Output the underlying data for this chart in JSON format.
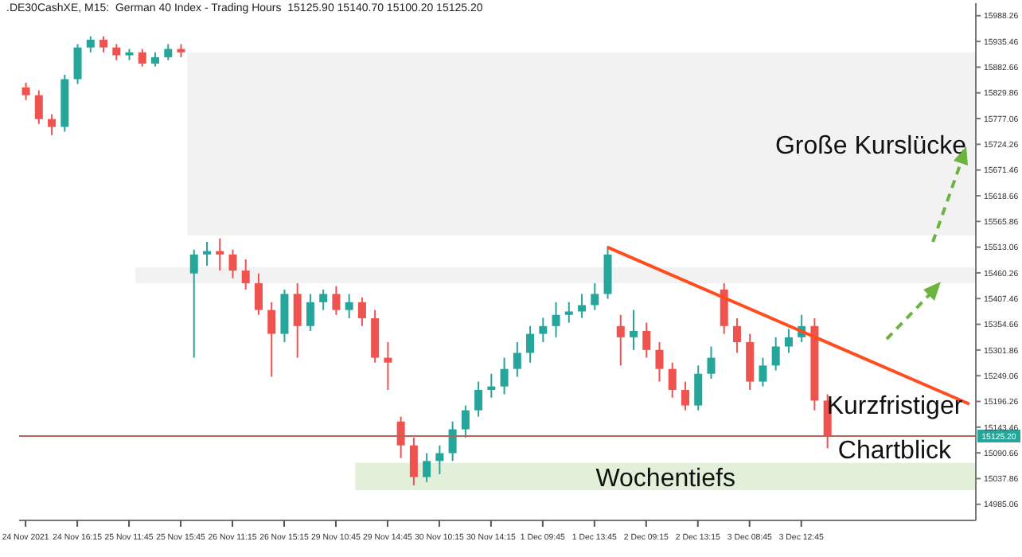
{
  "chart_data": {
    "type": "candlestick",
    "title": ".DE30CashXE, M15:  German 40 Index - Trading Hours  15125.90 15140.70 15100.20 15125.20",
    "categories": [
      "24 Nov 2021",
      null,
      null,
      null,
      "24 Nov 16:15",
      null,
      null,
      null,
      "25 Nov 11:45",
      null,
      null,
      null,
      "25 Nov 15:45",
      null,
      null,
      null,
      "26 Nov 11:15",
      null,
      null,
      null,
      "26 Nov 15:15",
      null,
      null,
      null,
      "29 Nov 10:45",
      null,
      null,
      null,
      "29 Nov 14:45",
      null,
      null,
      null,
      "30 Nov 10:15",
      null,
      null,
      null,
      "30 Nov 14:15",
      null,
      null,
      null,
      "1 Dec 09:45",
      null,
      null,
      null,
      "1 Dec 13:45",
      null,
      null,
      null,
      "2 Dec 09:15",
      null,
      null,
      null,
      "2 Dec 13:15",
      null,
      null,
      null,
      "3 Dec 08:45",
      null,
      null,
      null,
      "3 Dec 12:45",
      null,
      null,
      null,
      null,
      null,
      null,
      null,
      null,
      null,
      null,
      null,
      null,
      null
    ],
    "ohlc": [
      [
        15841,
        15851,
        15815,
        15825
      ],
      [
        15825,
        15835,
        15766,
        15776
      ],
      [
        15776,
        15786,
        15743,
        15760
      ],
      [
        15760,
        15867,
        15750,
        15858
      ],
      [
        15858,
        15930,
        15848,
        15923
      ],
      [
        15923,
        15946,
        15913,
        15939
      ],
      [
        15939,
        15946,
        15913,
        15923
      ],
      [
        15923,
        15930,
        15897,
        15907
      ],
      [
        15907,
        15920,
        15897,
        15913
      ],
      [
        15913,
        15920,
        15884,
        15890
      ],
      [
        15890,
        15913,
        15884,
        15903
      ],
      [
        15903,
        15930,
        15897,
        15920
      ],
      [
        15920,
        15930,
        15903,
        15913
      ],
      [
        15459,
        15508,
        15286,
        15498
      ],
      [
        15498,
        15524,
        15475,
        15505
      ],
      [
        15505,
        15531,
        15465,
        15498
      ],
      [
        15498,
        15508,
        15449,
        15465
      ],
      [
        15465,
        15488,
        15426,
        15439
      ],
      [
        15439,
        15459,
        15374,
        15384
      ],
      [
        15384,
        15400,
        15247,
        15335
      ],
      [
        15335,
        15426,
        15318,
        15417
      ],
      [
        15417,
        15439,
        15286,
        15351
      ],
      [
        15351,
        15417,
        15341,
        15400
      ],
      [
        15400,
        15426,
        15384,
        15417
      ],
      [
        15417,
        15433,
        15374,
        15384
      ],
      [
        15384,
        15417,
        15367,
        15400
      ],
      [
        15400,
        15410,
        15351,
        15367
      ],
      [
        15367,
        15384,
        15276,
        15286
      ],
      [
        15286,
        15318,
        15220,
        15276
      ],
      [
        15155,
        15165,
        15080,
        15106
      ],
      [
        15106,
        15122,
        15024,
        15041
      ],
      [
        15041,
        15090,
        15031,
        15074
      ],
      [
        15074,
        15106,
        15047,
        15090
      ],
      [
        15090,
        15155,
        15074,
        15139
      ],
      [
        15139,
        15188,
        15122,
        15178
      ],
      [
        15178,
        15237,
        15165,
        15220
      ],
      [
        15220,
        15253,
        15204,
        15227
      ],
      [
        15227,
        15286,
        15211,
        15263
      ],
      [
        15263,
        15318,
        15247,
        15296
      ],
      [
        15296,
        15351,
        15276,
        15335
      ],
      [
        15335,
        15368,
        15318,
        15351
      ],
      [
        15351,
        15400,
        15328,
        15374
      ],
      [
        15374,
        15400,
        15358,
        15381
      ],
      [
        15381,
        15417,
        15368,
        15394
      ],
      [
        15394,
        15439,
        15384,
        15417
      ],
      [
        15417,
        15515,
        15407,
        15498
      ],
      [
        15351,
        15374,
        15270,
        15328
      ],
      [
        15328,
        15384,
        15302,
        15341
      ],
      [
        15341,
        15358,
        15286,
        15302
      ],
      [
        15302,
        15318,
        15237,
        15263
      ],
      [
        15263,
        15276,
        15204,
        15220
      ],
      [
        15220,
        15237,
        15178,
        15188
      ],
      [
        15188,
        15270,
        15178,
        15253
      ],
      [
        15253,
        15309,
        15243,
        15286
      ],
      [
        15426,
        15439,
        15335,
        15351
      ],
      [
        15351,
        15367,
        15296,
        15318
      ],
      [
        15318,
        15335,
        15220,
        15237
      ],
      [
        15237,
        15286,
        15227,
        15270
      ],
      [
        15270,
        15328,
        15260,
        15309
      ],
      [
        15309,
        15345,
        15296,
        15328
      ],
      [
        15328,
        15374,
        15318,
        15351
      ],
      [
        15351,
        15367,
        15178,
        15198
      ],
      [
        15198,
        15211,
        15100,
        15125
      ],
      null,
      null,
      null,
      null,
      null,
      null,
      null,
      null,
      null,
      null,
      null
    ],
    "series": [
      {
        "type": "line",
        "color": "#ff4d1f",
        "values": [
          null,
          null,
          null,
          null,
          null,
          null,
          null,
          null,
          null,
          null,
          null,
          null,
          null,
          null,
          null,
          null,
          null,
          null,
          null,
          null,
          null,
          null,
          null,
          null,
          null,
          null,
          null,
          null,
          null,
          null,
          null,
          null,
          null,
          null,
          null,
          null,
          null,
          null,
          null,
          null,
          null,
          null,
          null,
          null,
          null,
          15513,
          null,
          null,
          null,
          null,
          null,
          null,
          null,
          null,
          null,
          null,
          null,
          null,
          null,
          null,
          null,
          null,
          null,
          null,
          null,
          null,
          null,
          null,
          null,
          null,
          null,
          null,
          null,
          15191
        ]
      }
    ],
    "ylim": [
      14952,
      16014
    ],
    "yticks": [
      15988.26,
      15935.46,
      15882.66,
      15829.86,
      15777.06,
      15724.26,
      15671.46,
      15618.66,
      15565.86,
      15513.06,
      15460.26,
      15407.46,
      15354.66,
      15301.86,
      15249.06,
      15196.26,
      15143.46,
      15090.66,
      15037.86,
      14985.06
    ],
    "bands": [
      {
        "axis": "y",
        "from": 15537,
        "to": 15913,
        "label": "Große Kurslücke",
        "color": "#f2f2f2"
      },
      {
        "axis": "y",
        "from": 15439,
        "to": 15472,
        "color": "#f2f2f2"
      },
      {
        "axis": "y",
        "from": 15014,
        "to": 15070,
        "label": "Wochentiefs",
        "color": "#e2f0d9"
      }
    ],
    "ref_lines": [
      {
        "axis": "y",
        "value": 15125.2,
        "label": "15125.20",
        "color": "#b5655a"
      }
    ],
    "annotations": [
      "Kurzfristiger Chartblick"
    ],
    "grid": false,
    "legend": false
  }
}
